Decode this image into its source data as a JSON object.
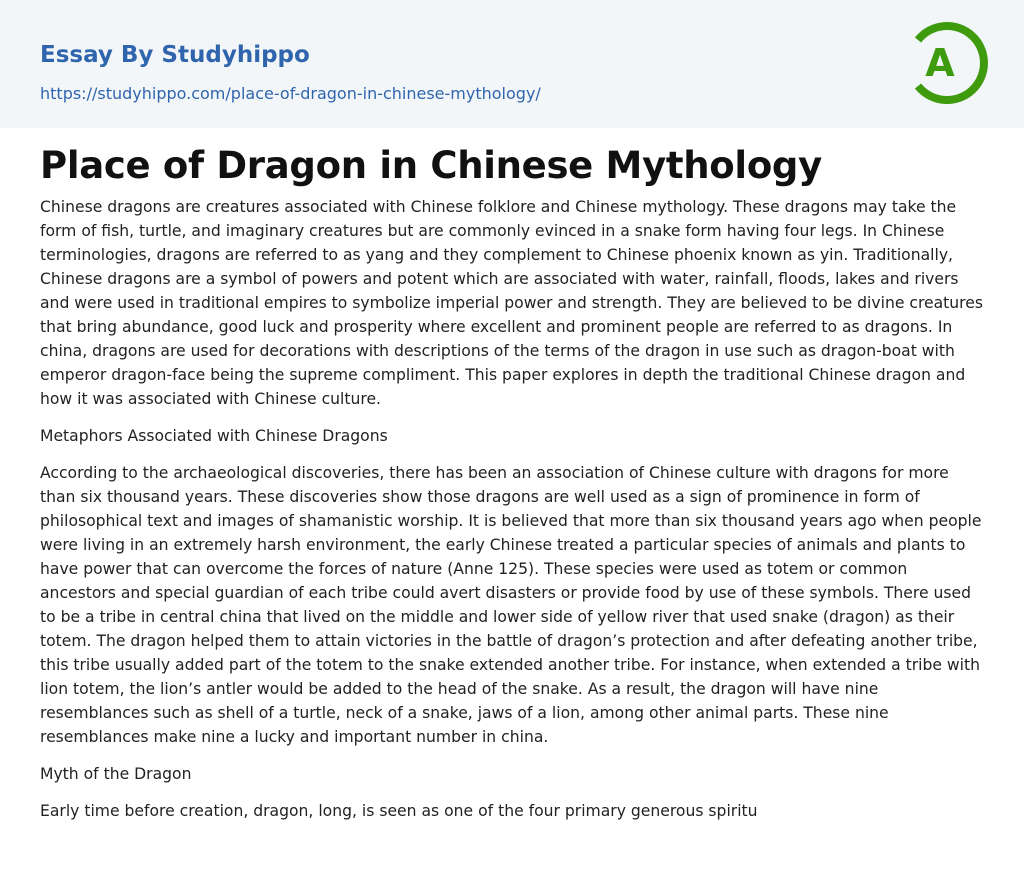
{
  "header": {
    "brand": "Essay By Studyhippo",
    "url": "https://studyhippo.com/place-of-dragon-in-chinese-mythology/",
    "logo_letter": "A",
    "logo_color": "#3e9b0e"
  },
  "article": {
    "title": "Place of Dragon in Chinese Mythology",
    "paragraphs": [
      "Chinese dragons are creatures associated with Chinese folklore and Chinese mythology. These dragons may take the form of fish, turtle, and imaginary creatures but are commonly evinced in a snake form having four legs. In Chinese terminologies, dragons are referred to as yang and they complement to Chinese phoenix known as yin. Traditionally, Chinese dragons are a symbol of powers and potent which are associated with water, rainfall, floods, lakes and rivers and were used in traditional empires to symbolize imperial power and strength. They are believed to be divine creatures that bring abundance, good luck and prosperity where excellent and prominent people are referred to as dragons. In china, dragons are used for decorations with descriptions of the terms of the dragon in use such as dragon-boat with emperor dragon-face being the supreme compliment. This paper explores in depth the traditional Chinese dragon and how it was associated with Chinese culture.",
      "Metaphors Associated with Chinese Dragons",
      "According to the archaeological discoveries, there has been an association of Chinese culture with dragons for more than six thousand years. These discoveries show those dragons are well used as a sign of prominence in form of philosophical text and images of shamanistic worship. It is believed that more than six thousand years ago when people were living in an extremely harsh environment, the early Chinese treated a particular species of animals and plants to have power that can overcome the forces of nature (Anne 125). These species were used as totem or common ancestors and special guardian of each tribe could avert disasters or provide food by use of these symbols. There used to be a tribe in central china that lived on the middle and lower side of yellow river that used snake (dragon) as their totem. The dragon helped them to attain victories in the battle of dragon’s protection and after defeating another tribe, this tribe usually added part of the totem to the snake extended another tribe. For instance, when extended a tribe with lion totem, the lion’s antler would be added to the head of the snake. As a result, the dragon will have nine resemblances such as shell of a turtle, neck of a snake, jaws of a lion, among other animal parts. These nine resemblances make nine a lucky and important number in china.",
      "Myth of the Dragon",
      "Early time before creation, dragon, long, is seen as one of the four primary generous spiritu"
    ]
  }
}
